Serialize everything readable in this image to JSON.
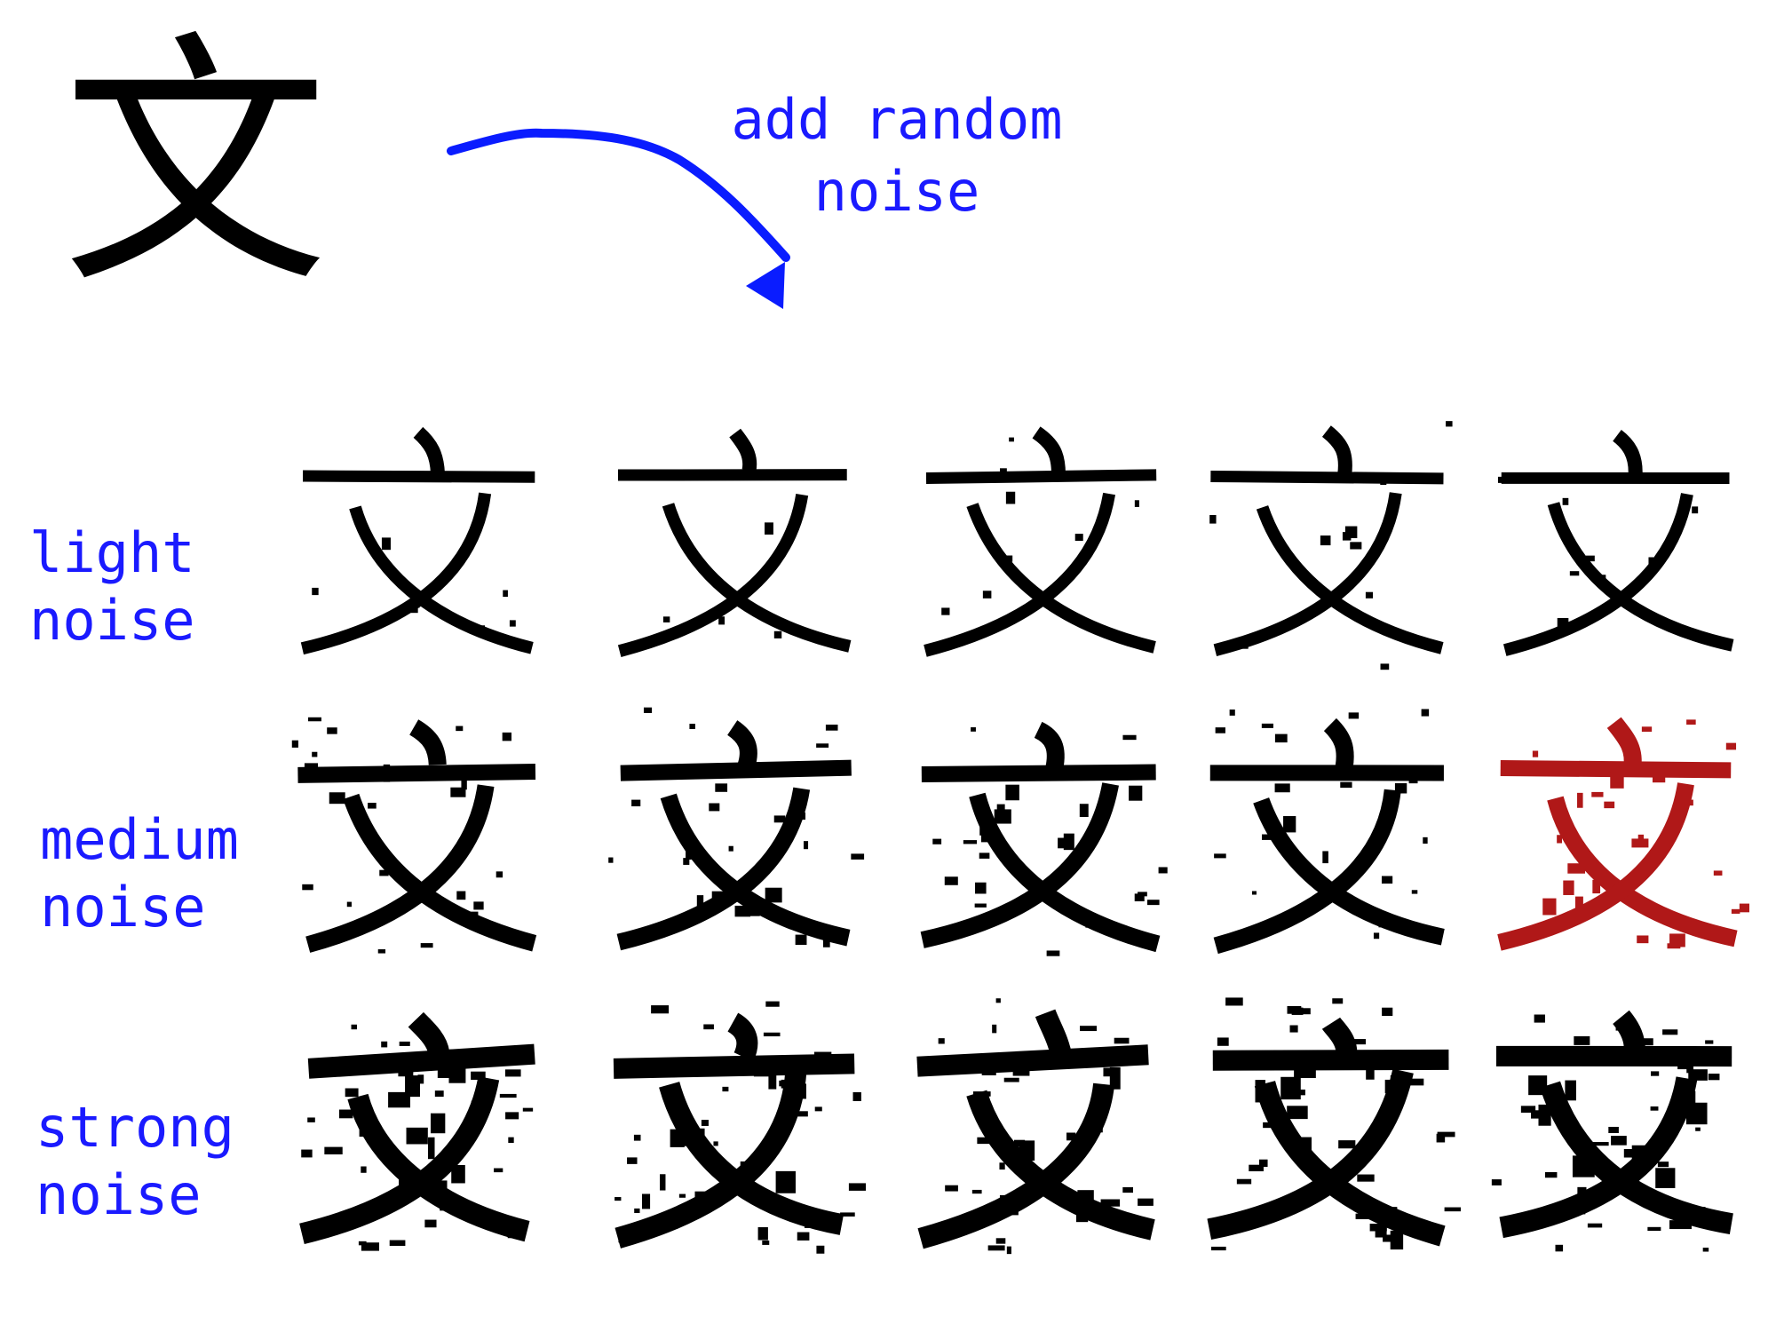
{
  "original_glyph": "文",
  "annotation": {
    "line1": "add random",
    "line2": "noise"
  },
  "row_labels": [
    {
      "line1": "light",
      "line2": "noise"
    },
    {
      "line1": "medium",
      "line2": "noise"
    },
    {
      "line1": "strong",
      "line2": "noise"
    }
  ],
  "grid": {
    "rows": 3,
    "columns": 5,
    "highlighted": {
      "row": 2,
      "column": 5
    }
  },
  "colors": {
    "text_accent": "#1a1aff",
    "arrow": "#0a1cff",
    "glyph": "#000000",
    "highlight": "#b01818"
  }
}
